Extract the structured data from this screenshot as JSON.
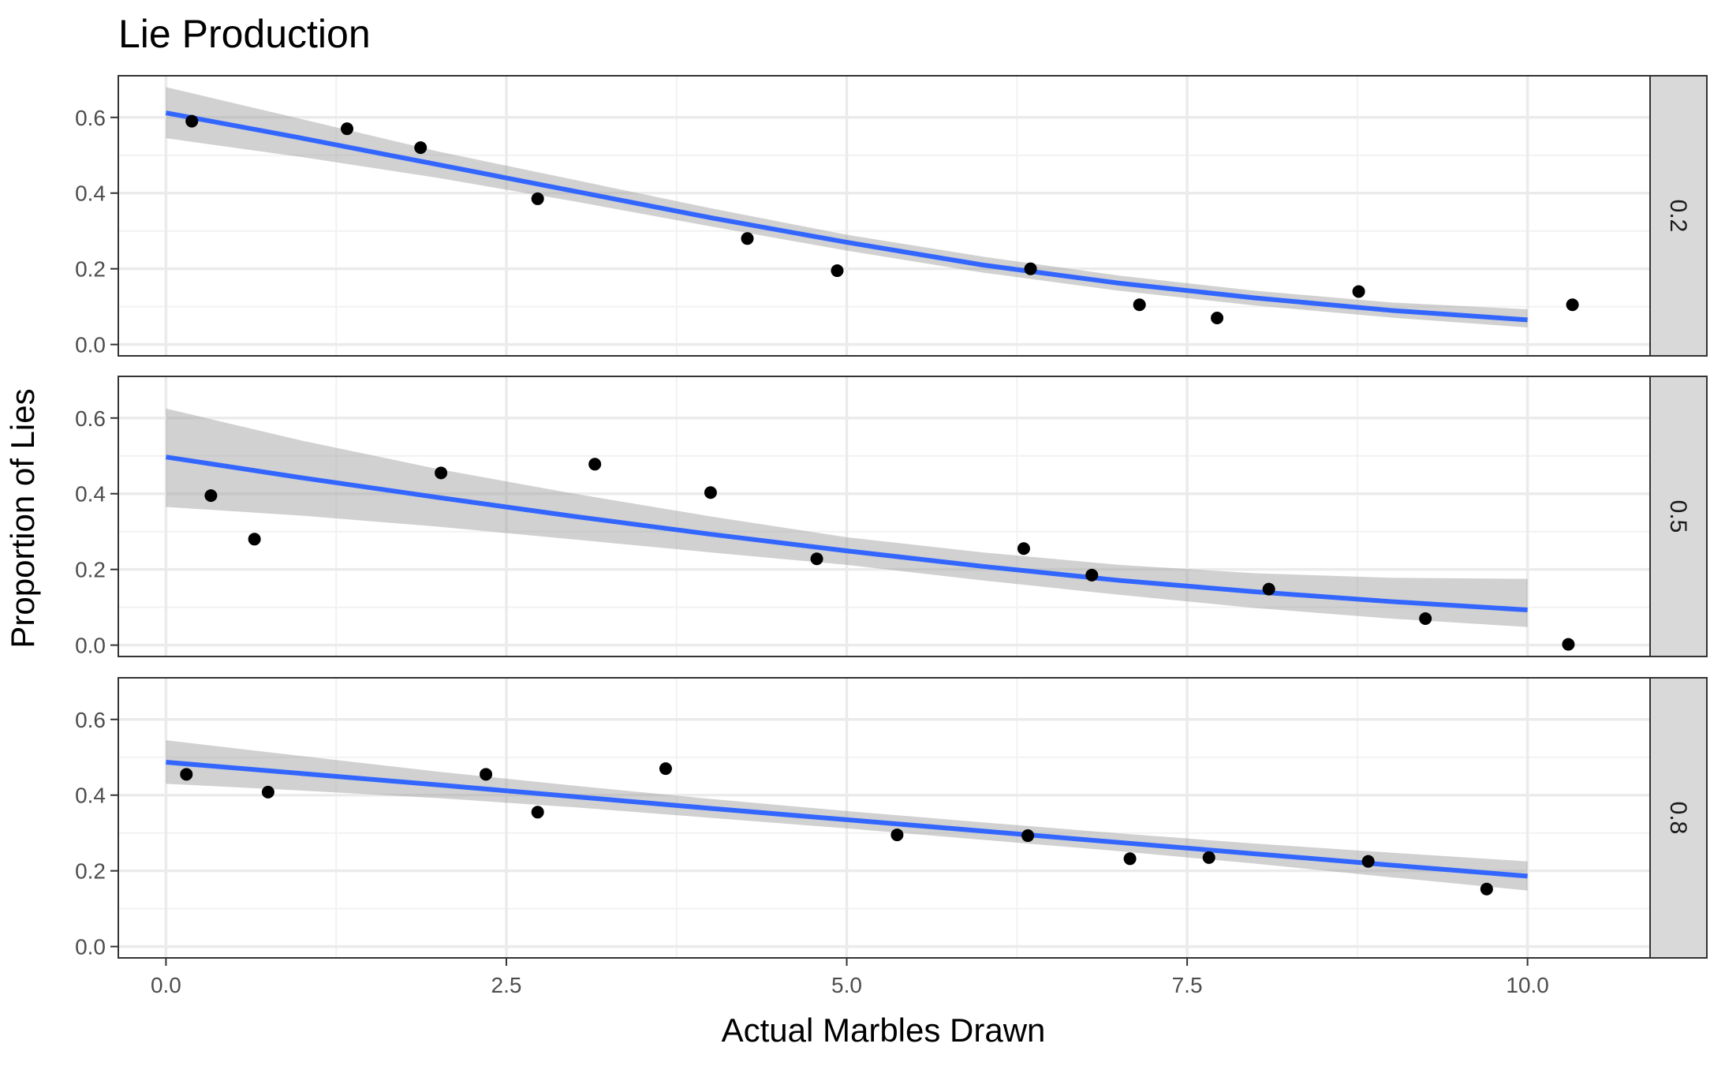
{
  "chart_data": {
    "type": "scatter",
    "title": "Lie Production",
    "xlabel": "Actual Marbles Drawn",
    "ylabel": "Proportion of Lies",
    "xlim": [
      -0.35,
      10.9
    ],
    "ylim": [
      -0.03,
      0.71
    ],
    "x_ticks": [
      0,
      2.5,
      5,
      7.5,
      10
    ],
    "x_tick_labels": [
      "0.0",
      "2.5",
      "5.0",
      "7.5",
      "10.0"
    ],
    "y_ticks": [
      0,
      0.2,
      0.4,
      0.6
    ],
    "y_tick_labels": [
      "0.0",
      "0.2",
      "0.4",
      "0.6"
    ],
    "grid": true,
    "colors": {
      "point": "#000000",
      "fit_line": "#3366ff",
      "ribbon": "#999999",
      "grid": "#ebebeb",
      "strip": "#d9d9d9"
    },
    "panels": [
      {
        "facet": "0.2",
        "points": [
          [
            0.19,
            0.59
          ],
          [
            1.33,
            0.57
          ],
          [
            1.87,
            0.52
          ],
          [
            2.73,
            0.385
          ],
          [
            4.27,
            0.28
          ],
          [
            4.93,
            0.195
          ],
          [
            6.35,
            0.2
          ],
          [
            7.15,
            0.105
          ],
          [
            7.72,
            0.07
          ],
          [
            8.76,
            0.14
          ],
          [
            10.33,
            0.105
          ]
        ],
        "fit": [
          [
            0,
            0.612
          ],
          [
            1,
            0.545
          ],
          [
            2,
            0.475
          ],
          [
            3,
            0.405
          ],
          [
            4,
            0.335
          ],
          [
            5,
            0.27
          ],
          [
            6,
            0.21
          ],
          [
            7,
            0.162
          ],
          [
            8,
            0.123
          ],
          [
            9,
            0.09
          ],
          [
            10,
            0.065
          ]
        ],
        "ribbon_upper": [
          [
            0,
            0.68
          ],
          [
            1,
            0.595
          ],
          [
            2,
            0.51
          ],
          [
            3,
            0.435
          ],
          [
            4,
            0.36
          ],
          [
            5,
            0.29
          ],
          [
            6,
            0.232
          ],
          [
            7,
            0.182
          ],
          [
            8,
            0.142
          ],
          [
            9,
            0.111
          ],
          [
            10,
            0.093
          ]
        ],
        "ribbon_lower": [
          [
            0,
            0.545
          ],
          [
            1,
            0.495
          ],
          [
            2,
            0.44
          ],
          [
            3,
            0.378
          ],
          [
            4,
            0.312
          ],
          [
            5,
            0.248
          ],
          [
            6,
            0.19
          ],
          [
            7,
            0.142
          ],
          [
            8,
            0.103
          ],
          [
            9,
            0.071
          ],
          [
            10,
            0.045
          ]
        ]
      },
      {
        "facet": "0.5",
        "points": [
          [
            0.33,
            0.395
          ],
          [
            0.65,
            0.28
          ],
          [
            2.02,
            0.455
          ],
          [
            3.15,
            0.478
          ],
          [
            4.0,
            0.403
          ],
          [
            4.78,
            0.228
          ],
          [
            6.3,
            0.255
          ],
          [
            6.8,
            0.185
          ],
          [
            8.1,
            0.148
          ],
          [
            9.25,
            0.07
          ],
          [
            10.3,
            0.002
          ]
        ],
        "fit": [
          [
            0,
            0.497
          ],
          [
            1,
            0.442
          ],
          [
            2,
            0.39
          ],
          [
            3,
            0.34
          ],
          [
            4,
            0.293
          ],
          [
            5,
            0.249
          ],
          [
            6,
            0.208
          ],
          [
            7,
            0.171
          ],
          [
            8,
            0.141
          ],
          [
            9,
            0.115
          ],
          [
            10,
            0.093
          ]
        ],
        "ribbon_upper": [
          [
            0,
            0.625
          ],
          [
            1,
            0.54
          ],
          [
            2,
            0.465
          ],
          [
            3,
            0.4
          ],
          [
            4,
            0.34
          ],
          [
            5,
            0.285
          ],
          [
            6,
            0.245
          ],
          [
            7,
            0.212
          ],
          [
            8,
            0.19
          ],
          [
            9,
            0.178
          ],
          [
            10,
            0.175
          ]
        ],
        "ribbon_lower": [
          [
            0,
            0.365
          ],
          [
            1,
            0.342
          ],
          [
            2,
            0.313
          ],
          [
            3,
            0.279
          ],
          [
            4,
            0.245
          ],
          [
            5,
            0.212
          ],
          [
            6,
            0.171
          ],
          [
            7,
            0.133
          ],
          [
            8,
            0.098
          ],
          [
            9,
            0.07
          ],
          [
            10,
            0.048
          ]
        ]
      },
      {
        "facet": "0.8",
        "points": [
          [
            0.15,
            0.455
          ],
          [
            0.75,
            0.408
          ],
          [
            2.35,
            0.455
          ],
          [
            2.73,
            0.355
          ],
          [
            3.67,
            0.47
          ],
          [
            5.37,
            0.295
          ],
          [
            6.33,
            0.293
          ],
          [
            7.08,
            0.232
          ],
          [
            7.66,
            0.235
          ],
          [
            8.83,
            0.225
          ],
          [
            9.7,
            0.152
          ]
        ],
        "fit": [
          [
            0,
            0.487
          ],
          [
            1,
            0.457
          ],
          [
            2,
            0.427
          ],
          [
            3,
            0.396
          ],
          [
            4,
            0.365
          ],
          [
            5,
            0.335
          ],
          [
            6,
            0.305
          ],
          [
            7,
            0.275
          ],
          [
            8,
            0.245
          ],
          [
            9,
            0.215
          ],
          [
            10,
            0.186
          ]
        ],
        "ribbon_upper": [
          [
            0,
            0.545
          ],
          [
            1,
            0.503
          ],
          [
            2,
            0.462
          ],
          [
            3,
            0.425
          ],
          [
            4,
            0.39
          ],
          [
            5,
            0.358
          ],
          [
            6,
            0.328
          ],
          [
            7,
            0.299
          ],
          [
            8,
            0.272
          ],
          [
            9,
            0.248
          ],
          [
            10,
            0.225
          ]
        ],
        "ribbon_lower": [
          [
            0,
            0.43
          ],
          [
            1,
            0.412
          ],
          [
            2,
            0.392
          ],
          [
            3,
            0.368
          ],
          [
            4,
            0.34
          ],
          [
            5,
            0.312
          ],
          [
            6,
            0.282
          ],
          [
            7,
            0.252
          ],
          [
            8,
            0.219
          ],
          [
            9,
            0.183
          ],
          [
            10,
            0.148
          ]
        ]
      }
    ]
  }
}
